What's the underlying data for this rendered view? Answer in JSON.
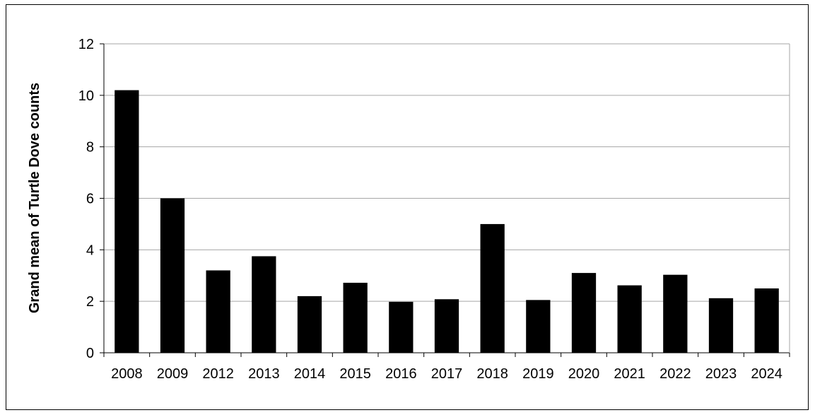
{
  "chart_data": {
    "type": "bar",
    "title": "",
    "xlabel": "",
    "ylabel": "Grand mean of Turtle Dove counts",
    "categories": [
      "2008",
      "2009",
      "2012",
      "2013",
      "2014",
      "2015",
      "2016",
      "2017",
      "2018",
      "2019",
      "2020",
      "2021",
      "2022",
      "2023",
      "2024"
    ],
    "values": [
      10.2,
      6.0,
      3.2,
      3.75,
      2.2,
      2.72,
      1.98,
      2.08,
      5.0,
      2.05,
      3.1,
      2.62,
      3.03,
      2.12,
      2.5
    ],
    "ylim": [
      0,
      12
    ],
    "yticks": [
      "0",
      "2",
      "4",
      "6",
      "8",
      "10",
      "12"
    ],
    "grid": true,
    "legend": "none",
    "bar_color": "#000000",
    "grid_color": "#a6a6a6"
  }
}
